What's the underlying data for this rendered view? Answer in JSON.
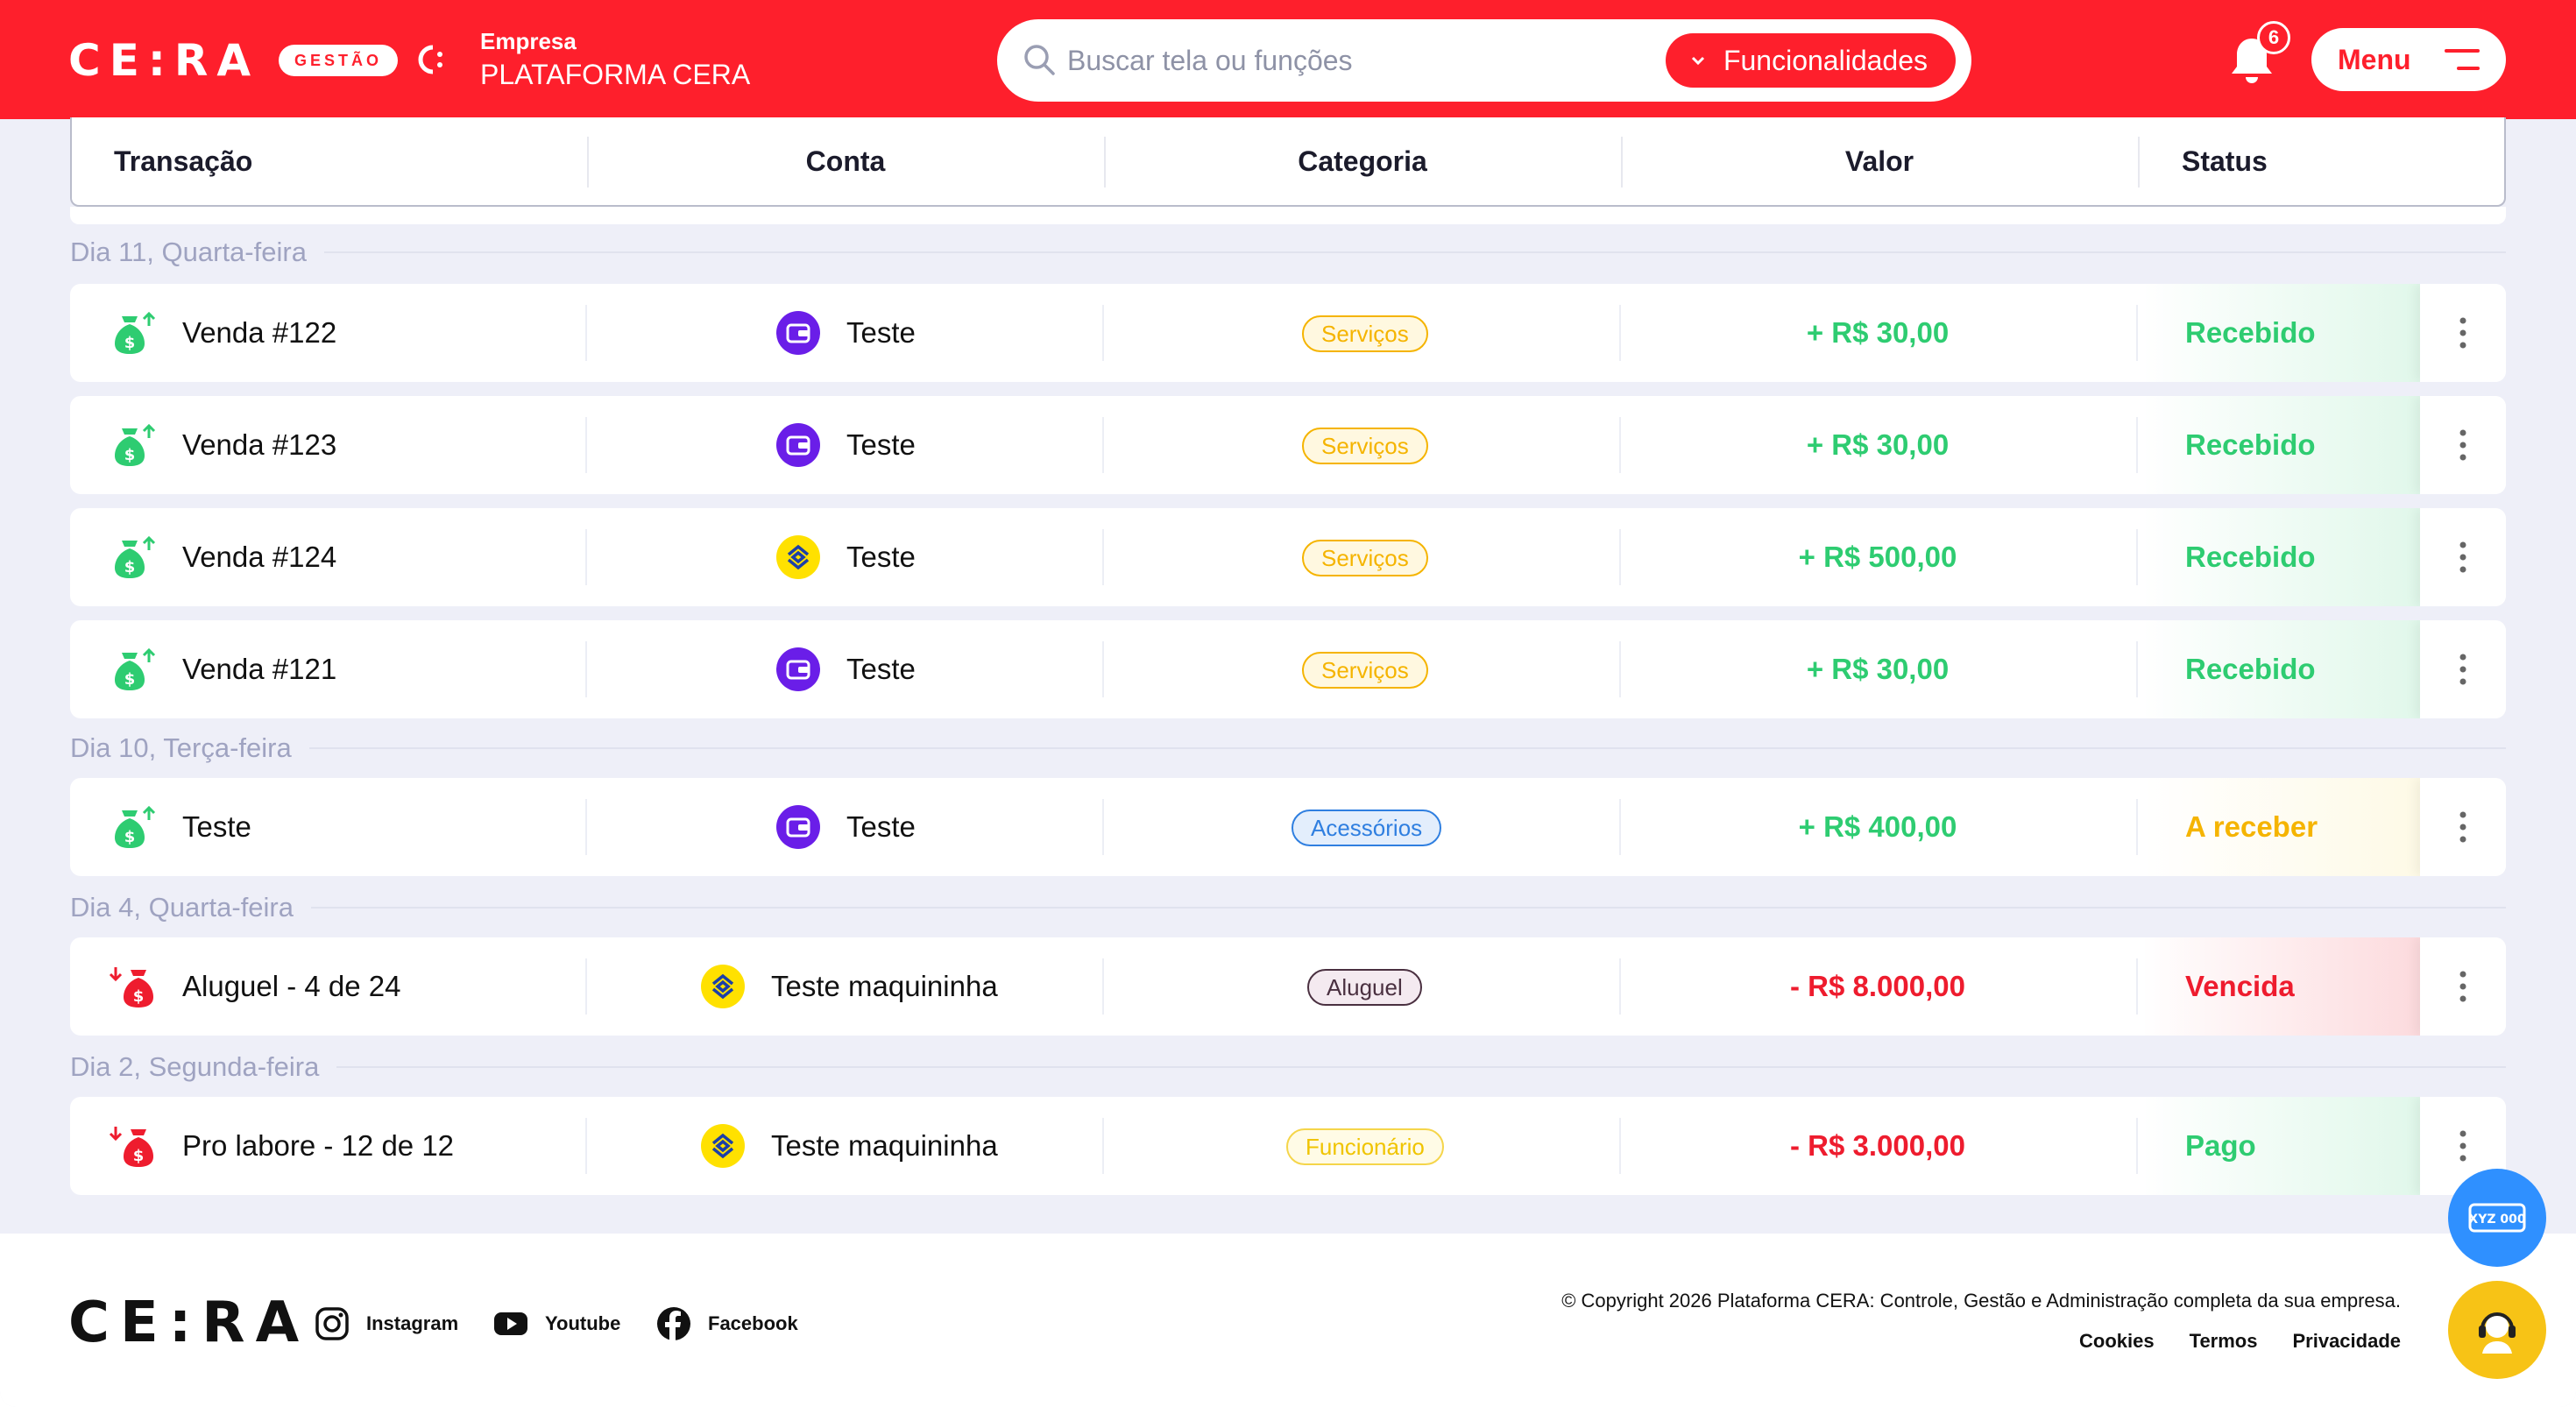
{
  "header": {
    "logo": "CE:RA",
    "logo_badge": "GESTÃO",
    "company_label": "Empresa",
    "company_name": "PLATAFORMA CERA",
    "search_placeholder": "Buscar tela ou funções",
    "func_button": "Funcionalidades",
    "notifications_count": "6",
    "menu_label": "Menu"
  },
  "table": {
    "columns": [
      "Transação",
      "Conta",
      "Categoria",
      "Valor",
      "Status"
    ]
  },
  "groups": [
    {
      "day": "Dia 11, Quarta-feira",
      "rows": [
        {
          "name": "Venda #122",
          "account": "Teste",
          "account_icon": "wallet-icon",
          "category": "Serviços",
          "value": "+ R$ 30,00",
          "status": "Recebido"
        },
        {
          "name": "Venda #123",
          "account": "Teste",
          "account_icon": "wallet-icon",
          "category": "Serviços",
          "value": "+ R$ 30,00",
          "status": "Recebido"
        },
        {
          "name": "Venda #124",
          "account": "Teste",
          "account_icon": "bank-icon",
          "category": "Serviços",
          "value": "+ R$ 500,00",
          "status": "Recebido"
        },
        {
          "name": "Venda #121",
          "account": "Teste",
          "account_icon": "wallet-icon",
          "category": "Serviços",
          "value": "+ R$ 30,00",
          "status": "Recebido"
        }
      ]
    },
    {
      "day": "Dia 10, Terça-feira",
      "rows": [
        {
          "name": "Teste",
          "account": "Teste",
          "account_icon": "wallet-icon",
          "category": "Acessórios",
          "value": "+ R$ 400,00",
          "status": "A receber"
        }
      ]
    },
    {
      "day": "Dia 4, Quarta-feira",
      "rows": [
        {
          "name": "Aluguel - 4 de 24",
          "account": "Teste maquininha",
          "account_icon": "bank-icon",
          "category": "Aluguel",
          "value": "- R$ 8.000,00",
          "status": "Vencida"
        }
      ]
    },
    {
      "day": "Dia 2, Segunda-feira",
      "rows": [
        {
          "name": "Pro labore - 12 de 12",
          "account": "Teste maquininha",
          "account_icon": "bank-icon",
          "category": "Funcionário",
          "value": "- R$ 3.000,00",
          "status": "Pago"
        }
      ]
    }
  ],
  "colors": {
    "brand_red": "#fe1f2c",
    "income_green": "#2ecc71",
    "expense_red": "#ee1c2e",
    "pending_yellow": "#f5b400",
    "wallet_purple": "#6a1ee8",
    "bank_yellow": "#ffe100"
  },
  "footer": {
    "logo": "CE:RA",
    "instagram": "Instagram",
    "youtube": "Youtube",
    "facebook": "Facebook",
    "copyright": "© Copyright 2026 Plataforma CERA: Controle, Gestão e Administração completa da sua empresa.",
    "links": [
      "Cookies",
      "Termos",
      "Privacidade"
    ]
  },
  "fab": {
    "plate_label": "XYZ 000"
  }
}
